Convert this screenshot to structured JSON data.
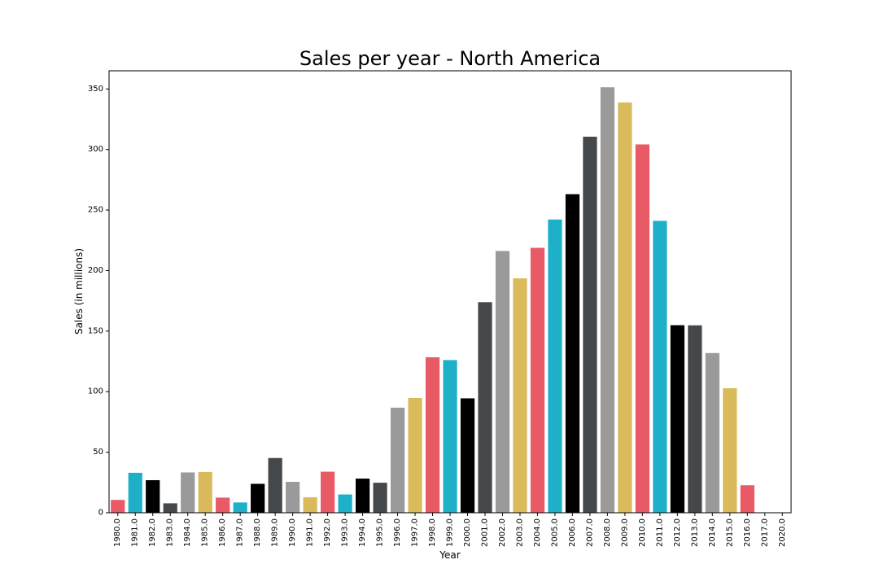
{
  "chart_data": {
    "type": "bar",
    "title": "Sales per year - North America",
    "xlabel": "Year",
    "ylabel": "Sales (in millions)",
    "ylim": [
      0,
      365
    ],
    "yticks": [
      0,
      50,
      100,
      150,
      200,
      250,
      300,
      350
    ],
    "grid": false,
    "categories": [
      "1980.0",
      "1981.0",
      "1982.0",
      "1983.0",
      "1984.0",
      "1985.0",
      "1986.0",
      "1987.0",
      "1988.0",
      "1989.0",
      "1990.0",
      "1991.0",
      "1992.0",
      "1993.0",
      "1994.0",
      "1995.0",
      "1996.0",
      "1997.0",
      "1998.0",
      "1999.0",
      "2000.0",
      "2001.0",
      "2002.0",
      "2003.0",
      "2004.0",
      "2005.0",
      "2006.0",
      "2007.0",
      "2008.0",
      "2009.0",
      "2010.0",
      "2011.0",
      "2012.0",
      "2013.0",
      "2014.0",
      "2015.0",
      "2016.0",
      "2017.0",
      "2020.0"
    ],
    "values": [
      10.6,
      33.0,
      26.9,
      7.8,
      33.3,
      33.7,
      12.5,
      8.5,
      23.9,
      45.2,
      25.5,
      12.8,
      33.9,
      15.1,
      28.2,
      24.8,
      86.8,
      94.8,
      128.4,
      126.1,
      94.5,
      173.9,
      216.2,
      193.6,
      218.8,
      242.2,
      263.1,
      310.6,
      351.4,
      338.9,
      304.2,
      241.1,
      154.9,
      154.8,
      131.9,
      102.8,
      22.7,
      0.0,
      0.3
    ],
    "palette": [
      "#e85a66",
      "#1fb0c9",
      "#000000",
      "#45484b",
      "#9a9a9a",
      "#d9bb5b"
    ]
  }
}
